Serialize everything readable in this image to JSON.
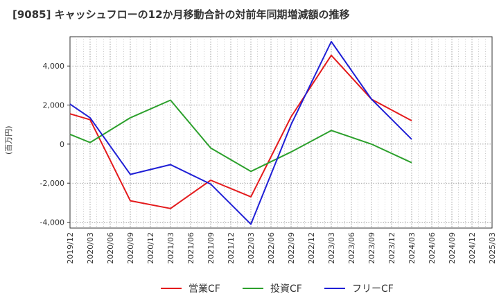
{
  "chart_data": {
    "type": "line",
    "title": "[9085]  キャッシュフローの12か月移動合計の対前年同期増減額の推移",
    "ylabel": "(百万円)",
    "xlabel": "",
    "ylim": [
      -4300,
      5500
    ],
    "yticks": [
      -4000,
      -2000,
      0,
      2000,
      4000
    ],
    "ytick_labels": [
      "-4,000",
      "-2,000",
      "0",
      "2,000",
      "4,000"
    ],
    "x_categories": [
      "2019/12",
      "2020/03",
      "2020/06",
      "2020/09",
      "2020/12",
      "2021/03",
      "2021/06",
      "2021/09",
      "2021/12",
      "2022/03",
      "2022/06",
      "2022/09",
      "2022/12",
      "2023/03",
      "2023/06",
      "2023/09",
      "2023/12",
      "2024/03",
      "2024/06",
      "2024/09",
      "2024/12",
      "2025/03"
    ],
    "grid": true,
    "legend_position": "bottom",
    "series": [
      {
        "name": "営業CF",
        "color": "#e41a1c",
        "points": [
          [
            "2019/12",
            1550
          ],
          [
            "2020/03",
            1250
          ],
          [
            "2020/09",
            -2900
          ],
          [
            "2021/03",
            -3300
          ],
          [
            "2021/09",
            -1850
          ],
          [
            "2022/03",
            -2700
          ],
          [
            "2022/09",
            1400
          ],
          [
            "2023/03",
            4550
          ],
          [
            "2023/09",
            2300
          ],
          [
            "2024/03",
            1200
          ]
        ]
      },
      {
        "name": "投資CF",
        "color": "#2ca02c",
        "points": [
          [
            "2019/12",
            500
          ],
          [
            "2020/03",
            80
          ],
          [
            "2020/09",
            1350
          ],
          [
            "2021/03",
            2250
          ],
          [
            "2021/09",
            -200
          ],
          [
            "2022/03",
            -1400
          ],
          [
            "2022/09",
            -400
          ],
          [
            "2023/03",
            700
          ],
          [
            "2023/09",
            0
          ],
          [
            "2024/03",
            -950
          ]
        ]
      },
      {
        "name": "フリーCF",
        "color": "#1f1fd6",
        "points": [
          [
            "2019/12",
            2050
          ],
          [
            "2020/03",
            1350
          ],
          [
            "2020/09",
            -1550
          ],
          [
            "2021/03",
            -1050
          ],
          [
            "2021/09",
            -2050
          ],
          [
            "2022/03",
            -4100
          ],
          [
            "2022/09",
            1000
          ],
          [
            "2023/03",
            5250
          ],
          [
            "2023/09",
            2300
          ],
          [
            "2024/03",
            250
          ]
        ]
      }
    ]
  }
}
